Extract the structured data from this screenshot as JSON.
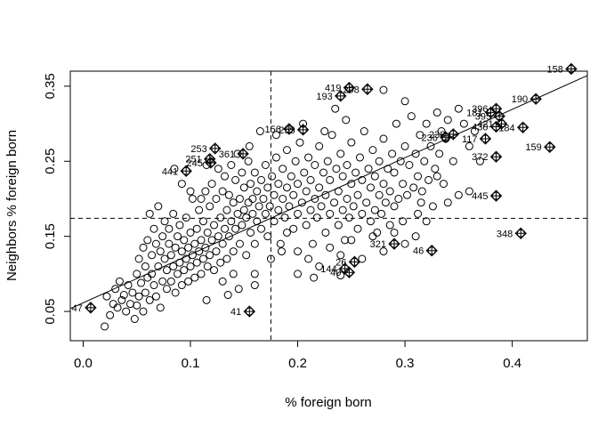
{
  "chart_data": {
    "type": "scatter",
    "title": "",
    "xlabel": "% foreign born",
    "ylabel": "Neighbors % foreign born",
    "xlim": [
      -0.012,
      0.47
    ],
    "ylim": [
      0.011,
      0.37
    ],
    "xticks": [
      0.0,
      0.1,
      0.2,
      0.3,
      0.4
    ],
    "xtick_labels": [
      "0.0",
      "0.1",
      "0.2",
      "0.3",
      "0.4"
    ],
    "yticks": [
      0.05,
      0.15,
      0.25,
      0.35
    ],
    "ytick_labels": [
      "0.05",
      "0.15",
      "0.25",
      "0.35"
    ],
    "grid": false,
    "legend": "none",
    "mean_x": 0.175,
    "mean_y": 0.174,
    "regression_line": {
      "intercept": 0.0615,
      "slope": 0.644
    },
    "points": [
      [
        0.02,
        0.03
      ],
      [
        0.022,
        0.07
      ],
      [
        0.025,
        0.045
      ],
      [
        0.028,
        0.06
      ],
      [
        0.03,
        0.08
      ],
      [
        0.032,
        0.055
      ],
      [
        0.034,
        0.09
      ],
      [
        0.036,
        0.065
      ],
      [
        0.038,
        0.072
      ],
      [
        0.04,
        0.05
      ],
      [
        0.042,
        0.085
      ],
      [
        0.044,
        0.06
      ],
      [
        0.046,
        0.075
      ],
      [
        0.048,
        0.04
      ],
      [
        0.05,
        0.1
      ],
      [
        0.05,
        0.058
      ],
      [
        0.052,
        0.12
      ],
      [
        0.052,
        0.07
      ],
      [
        0.054,
        0.088
      ],
      [
        0.056,
        0.05
      ],
      [
        0.056,
        0.135
      ],
      [
        0.058,
        0.11
      ],
      [
        0.058,
        0.075
      ],
      [
        0.06,
        0.095
      ],
      [
        0.06,
        0.145
      ],
      [
        0.062,
        0.065
      ],
      [
        0.062,
        0.18
      ],
      [
        0.064,
        0.1
      ],
      [
        0.064,
        0.125
      ],
      [
        0.066,
        0.085
      ],
      [
        0.066,
        0.16
      ],
      [
        0.068,
        0.07
      ],
      [
        0.068,
        0.14
      ],
      [
        0.07,
        0.11
      ],
      [
        0.07,
        0.19
      ],
      [
        0.072,
        0.055
      ],
      [
        0.072,
        0.13
      ],
      [
        0.074,
        0.09
      ],
      [
        0.074,
        0.15
      ],
      [
        0.076,
        0.12
      ],
      [
        0.076,
        0.17
      ],
      [
        0.078,
        0.08
      ],
      [
        0.078,
        0.105
      ],
      [
        0.08,
        0.14
      ],
      [
        0.08,
        0.16
      ],
      [
        0.082,
        0.09
      ],
      [
        0.082,
        0.125
      ],
      [
        0.084,
        0.11
      ],
      [
        0.084,
        0.18
      ],
      [
        0.086,
        0.075
      ],
      [
        0.086,
        0.135
      ],
      [
        0.088,
        0.1
      ],
      [
        0.088,
        0.15
      ],
      [
        0.09,
        0.115
      ],
      [
        0.09,
        0.165
      ],
      [
        0.092,
        0.085
      ],
      [
        0.092,
        0.13
      ],
      [
        0.094,
        0.105
      ],
      [
        0.094,
        0.145
      ],
      [
        0.096,
        0.12
      ],
      [
        0.096,
        0.175
      ],
      [
        0.098,
        0.09
      ],
      [
        0.098,
        0.135
      ],
      [
        0.1,
        0.11
      ],
      [
        0.1,
        0.155
      ],
      [
        0.102,
        0.125
      ],
      [
        0.102,
        0.2
      ],
      [
        0.104,
        0.095
      ],
      [
        0.104,
        0.14
      ],
      [
        0.106,
        0.115
      ],
      [
        0.106,
        0.16
      ],
      [
        0.108,
        0.13
      ],
      [
        0.108,
        0.185
      ],
      [
        0.11,
        0.1
      ],
      [
        0.11,
        0.145
      ],
      [
        0.112,
        0.12
      ],
      [
        0.112,
        0.17
      ],
      [
        0.114,
        0.135
      ],
      [
        0.114,
        0.21
      ],
      [
        0.116,
        0.11
      ],
      [
        0.116,
        0.155
      ],
      [
        0.118,
        0.125
      ],
      [
        0.118,
        0.19
      ],
      [
        0.12,
        0.145
      ],
      [
        0.12,
        0.22
      ],
      [
        0.122,
        0.105
      ],
      [
        0.122,
        0.165
      ],
      [
        0.124,
        0.13
      ],
      [
        0.124,
        0.2
      ],
      [
        0.126,
        0.15
      ],
      [
        0.126,
        0.24
      ],
      [
        0.128,
        0.115
      ],
      [
        0.128,
        0.175
      ],
      [
        0.13,
        0.14
      ],
      [
        0.13,
        0.21
      ],
      [
        0.132,
        0.16
      ],
      [
        0.132,
        0.23
      ],
      [
        0.134,
        0.12
      ],
      [
        0.134,
        0.185
      ],
      [
        0.136,
        0.15
      ],
      [
        0.136,
        0.205
      ],
      [
        0.138,
        0.17
      ],
      [
        0.138,
        0.245
      ],
      [
        0.14,
        0.13
      ],
      [
        0.14,
        0.195
      ],
      [
        0.142,
        0.16
      ],
      [
        0.142,
        0.225
      ],
      [
        0.144,
        0.18
      ],
      [
        0.144,
        0.26
      ],
      [
        0.146,
        0.14
      ],
      [
        0.146,
        0.2
      ],
      [
        0.148,
        0.165
      ],
      [
        0.148,
        0.235
      ],
      [
        0.15,
        0.185
      ],
      [
        0.15,
        0.215
      ],
      [
        0.152,
        0.125
      ],
      [
        0.152,
        0.175
      ],
      [
        0.154,
        0.195
      ],
      [
        0.154,
        0.25
      ],
      [
        0.156,
        0.155
      ],
      [
        0.156,
        0.22
      ],
      [
        0.158,
        0.18
      ],
      [
        0.158,
        0.2
      ],
      [
        0.16,
        0.14
      ],
      [
        0.16,
        0.235
      ],
      [
        0.162,
        0.17
      ],
      [
        0.162,
        0.21
      ],
      [
        0.164,
        0.19
      ],
      [
        0.166,
        0.16
      ],
      [
        0.166,
        0.225
      ],
      [
        0.168,
        0.2
      ],
      [
        0.17,
        0.18
      ],
      [
        0.17,
        0.245
      ],
      [
        0.172,
        0.15
      ],
      [
        0.172,
        0.215
      ],
      [
        0.174,
        0.19
      ],
      [
        0.176,
        0.23
      ],
      [
        0.178,
        0.17
      ],
      [
        0.178,
        0.205
      ],
      [
        0.18,
        0.255
      ],
      [
        0.182,
        0.185
      ],
      [
        0.182,
        0.22
      ],
      [
        0.184,
        0.14
      ],
      [
        0.186,
        0.2
      ],
      [
        0.186,
        0.24
      ],
      [
        0.188,
        0.175
      ],
      [
        0.19,
        0.215
      ],
      [
        0.19,
        0.265
      ],
      [
        0.192,
        0.19
      ],
      [
        0.194,
        0.23
      ],
      [
        0.196,
        0.16
      ],
      [
        0.196,
        0.205
      ],
      [
        0.198,
        0.25
      ],
      [
        0.2,
        0.18
      ],
      [
        0.2,
        0.22
      ],
      [
        0.202,
        0.275
      ],
      [
        0.204,
        0.195
      ],
      [
        0.206,
        0.235
      ],
      [
        0.208,
        0.165
      ],
      [
        0.208,
        0.21
      ],
      [
        0.21,
        0.255
      ],
      [
        0.212,
        0.185
      ],
      [
        0.212,
        0.225
      ],
      [
        0.214,
        0.14
      ],
      [
        0.216,
        0.2
      ],
      [
        0.216,
        0.245
      ],
      [
        0.218,
        0.175
      ],
      [
        0.22,
        0.215
      ],
      [
        0.22,
        0.27
      ],
      [
        0.222,
        0.19
      ],
      [
        0.224,
        0.235
      ],
      [
        0.226,
        0.155
      ],
      [
        0.226,
        0.205
      ],
      [
        0.228,
        0.25
      ],
      [
        0.23,
        0.18
      ],
      [
        0.23,
        0.225
      ],
      [
        0.232,
        0.285
      ],
      [
        0.234,
        0.195
      ],
      [
        0.236,
        0.24
      ],
      [
        0.238,
        0.165
      ],
      [
        0.238,
        0.21
      ],
      [
        0.24,
        0.26
      ],
      [
        0.242,
        0.185
      ],
      [
        0.242,
        0.23
      ],
      [
        0.244,
        0.145
      ],
      [
        0.246,
        0.2
      ],
      [
        0.246,
        0.245
      ],
      [
        0.248,
        0.175
      ],
      [
        0.25,
        0.22
      ],
      [
        0.25,
        0.275
      ],
      [
        0.252,
        0.19
      ],
      [
        0.254,
        0.235
      ],
      [
        0.256,
        0.16
      ],
      [
        0.256,
        0.205
      ],
      [
        0.258,
        0.255
      ],
      [
        0.26,
        0.18
      ],
      [
        0.26,
        0.225
      ],
      [
        0.262,
        0.29
      ],
      [
        0.264,
        0.195
      ],
      [
        0.266,
        0.24
      ],
      [
        0.268,
        0.17
      ],
      [
        0.268,
        0.215
      ],
      [
        0.27,
        0.265
      ],
      [
        0.272,
        0.185
      ],
      [
        0.272,
        0.23
      ],
      [
        0.274,
        0.155
      ],
      [
        0.276,
        0.205
      ],
      [
        0.276,
        0.25
      ],
      [
        0.278,
        0.18
      ],
      [
        0.28,
        0.22
      ],
      [
        0.28,
        0.28
      ],
      [
        0.282,
        0.195
      ],
      [
        0.284,
        0.24
      ],
      [
        0.286,
        0.165
      ],
      [
        0.286,
        0.21
      ],
      [
        0.288,
        0.26
      ],
      [
        0.29,
        0.19
      ],
      [
        0.29,
        0.235
      ],
      [
        0.292,
        0.3
      ],
      [
        0.294,
        0.2
      ],
      [
        0.296,
        0.25
      ],
      [
        0.298,
        0.17
      ],
      [
        0.298,
        0.22
      ],
      [
        0.3,
        0.27
      ],
      [
        0.302,
        0.205
      ],
      [
        0.304,
        0.245
      ],
      [
        0.306,
        0.31
      ],
      [
        0.308,
        0.215
      ],
      [
        0.31,
        0.26
      ],
      [
        0.312,
        0.18
      ],
      [
        0.312,
        0.23
      ],
      [
        0.314,
        0.285
      ],
      [
        0.316,
        0.21
      ],
      [
        0.318,
        0.25
      ],
      [
        0.32,
        0.3
      ],
      [
        0.322,
        0.225
      ],
      [
        0.324,
        0.27
      ],
      [
        0.326,
        0.19
      ],
      [
        0.328,
        0.24
      ],
      [
        0.33,
        0.315
      ],
      [
        0.332,
        0.26
      ],
      [
        0.334,
        0.29
      ],
      [
        0.336,
        0.22
      ],
      [
        0.338,
        0.28
      ],
      [
        0.34,
        0.305
      ],
      [
        0.345,
        0.25
      ],
      [
        0.35,
        0.32
      ],
      [
        0.355,
        0.3
      ],
      [
        0.36,
        0.21
      ],
      [
        0.365,
        0.29
      ],
      [
        0.115,
        0.065
      ],
      [
        0.13,
        0.09
      ],
      [
        0.145,
        0.08
      ],
      [
        0.16,
        0.1
      ],
      [
        0.175,
        0.12
      ],
      [
        0.185,
        0.13
      ],
      [
        0.19,
        0.155
      ],
      [
        0.2,
        0.13
      ],
      [
        0.21,
        0.12
      ],
      [
        0.22,
        0.11
      ],
      [
        0.23,
        0.135
      ],
      [
        0.24,
        0.125
      ],
      [
        0.25,
        0.145
      ],
      [
        0.26,
        0.12
      ],
      [
        0.27,
        0.15
      ],
      [
        0.28,
        0.13
      ],
      [
        0.29,
        0.155
      ],
      [
        0.3,
        0.14
      ],
      [
        0.31,
        0.15
      ],
      [
        0.32,
        0.17
      ],
      [
        0.2,
        0.1
      ],
      [
        0.215,
        0.095
      ],
      [
        0.24,
        0.098
      ],
      [
        0.14,
        0.1
      ],
      [
        0.135,
        0.072
      ],
      [
        0.16,
        0.085
      ],
      [
        0.235,
        0.32
      ],
      [
        0.28,
        0.345
      ],
      [
        0.245,
        0.305
      ],
      [
        0.3,
        0.33
      ],
      [
        0.205,
        0.3
      ],
      [
        0.225,
        0.29
      ],
      [
        0.165,
        0.29
      ],
      [
        0.155,
        0.27
      ],
      [
        0.18,
        0.285
      ],
      [
        0.11,
        0.2
      ],
      [
        0.085,
        0.24
      ],
      [
        0.092,
        0.22
      ],
      [
        0.1,
        0.21
      ],
      [
        0.115,
        0.245
      ],
      [
        0.35,
        0.205
      ],
      [
        0.34,
        0.195
      ],
      [
        0.33,
        0.23
      ],
      [
        0.315,
        0.195
      ],
      [
        0.37,
        0.25
      ],
      [
        0.36,
        0.27
      ]
    ],
    "labeled_points": [
      {
        "label": "158",
        "x": 0.455,
        "y": 0.373
      },
      {
        "label": "419",
        "x": 0.248,
        "y": 0.348
      },
      {
        "label": "298",
        "x": 0.265,
        "y": 0.346
      },
      {
        "label": "193",
        "x": 0.24,
        "y": 0.337
      },
      {
        "label": "190",
        "x": 0.422,
        "y": 0.333
      },
      {
        "label": "396",
        "x": 0.385,
        "y": 0.32
      },
      {
        "label": "181",
        "x": 0.38,
        "y": 0.315
      },
      {
        "label": "395",
        "x": 0.388,
        "y": 0.31
      },
      {
        "label": "421",
        "x": 0.39,
        "y": 0.3
      },
      {
        "label": "184",
        "x": 0.41,
        "y": 0.295
      },
      {
        "label": "430",
        "x": 0.385,
        "y": 0.296
      },
      {
        "label": "156",
        "x": 0.192,
        "y": 0.293
      },
      {
        "label": "255",
        "x": 0.205,
        "y": 0.292
      },
      {
        "label": "238",
        "x": 0.345,
        "y": 0.286
      },
      {
        "label": "117",
        "x": 0.375,
        "y": 0.28
      },
      {
        "label": "236",
        "x": 0.338,
        "y": 0.282
      },
      {
        "label": "159",
        "x": 0.435,
        "y": 0.269
      },
      {
        "label": "253",
        "x": 0.123,
        "y": 0.267
      },
      {
        "label": "361",
        "x": 0.149,
        "y": 0.26
      },
      {
        "label": "372",
        "x": 0.385,
        "y": 0.256
      },
      {
        "label": "251",
        "x": 0.118,
        "y": 0.253
      },
      {
        "label": "245",
        "x": 0.119,
        "y": 0.248
      },
      {
        "label": "441",
        "x": 0.096,
        "y": 0.237
      },
      {
        "label": "445",
        "x": 0.385,
        "y": 0.204
      },
      {
        "label": "348",
        "x": 0.408,
        "y": 0.154
      },
      {
        "label": "321",
        "x": 0.29,
        "y": 0.14
      },
      {
        "label": "46",
        "x": 0.325,
        "y": 0.131
      },
      {
        "label": "26",
        "x": 0.253,
        "y": 0.116
      },
      {
        "label": "144",
        "x": 0.244,
        "y": 0.107
      },
      {
        "label": "40",
        "x": 0.248,
        "y": 0.102
      },
      {
        "label": "47",
        "x": 0.007,
        "y": 0.055
      },
      {
        "label": "41",
        "x": 0.155,
        "y": 0.05
      }
    ]
  }
}
